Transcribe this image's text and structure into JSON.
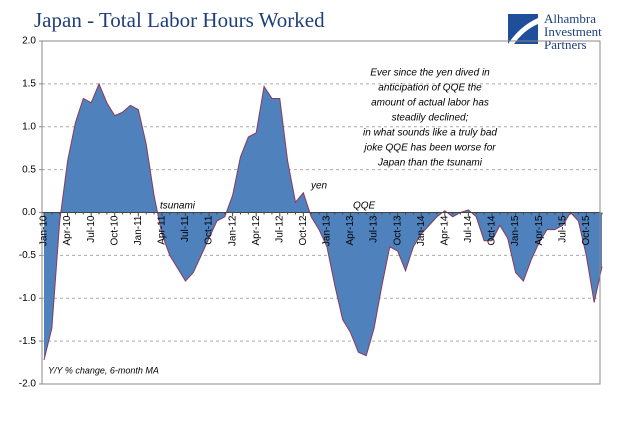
{
  "chart_data": {
    "type": "area",
    "title": "Japan - Total Labor Hours Worked",
    "logo": [
      "Alhambra",
      "Investment",
      "Partners"
    ],
    "axis_note": "Y/Y % change, 6-month MA",
    "note": [
      "Ever since the yen dived in",
      "anticipation of QQE the",
      "amount of actual labor has",
      "steadily declined;",
      "in what sounds like a truly bad",
      "joke QQE has been worse for",
      "Japan than the tsunami"
    ],
    "annotations": [
      "tsunami",
      "yen",
      "QQE"
    ],
    "categories": [
      "Jan-10",
      null,
      null,
      "Apr-10",
      null,
      null,
      "Jul-10",
      null,
      null,
      "Oct-10",
      null,
      null,
      "Jan-11",
      null,
      null,
      "Apr-11",
      null,
      null,
      "Jul-11",
      null,
      null,
      "Oct-11",
      null,
      null,
      "Jan-12",
      null,
      null,
      "Apr-12",
      null,
      null,
      "Jul-12",
      null,
      null,
      "Oct-12",
      null,
      null,
      "Jan-13",
      null,
      null,
      "Apr-13",
      null,
      null,
      "Jul-13",
      null,
      null,
      "Oct-13",
      null,
      null,
      "Jan-14",
      null,
      null,
      "Apr-14",
      null,
      null,
      "Jul-14",
      null,
      null,
      "Oct-14",
      null,
      null,
      "Jan-15",
      null,
      null,
      "Apr-15",
      null,
      null,
      "Jul-15",
      null,
      null,
      "Oct-15",
      null,
      null
    ],
    "values": [
      -1.72,
      -1.35,
      -0.1,
      0.6,
      1.05,
      1.33,
      1.28,
      1.5,
      1.28,
      1.13,
      1.17,
      1.25,
      1.2,
      0.8,
      0.2,
      -0.25,
      -0.5,
      -0.65,
      -0.8,
      -0.7,
      -0.5,
      -0.3,
      -0.1,
      -0.05,
      0.2,
      0.65,
      0.88,
      0.93,
      1.47,
      1.33,
      1.33,
      0.6,
      0.12,
      0.23,
      -0.05,
      -0.2,
      -0.4,
      -0.85,
      -1.25,
      -1.4,
      -1.63,
      -1.67,
      -1.35,
      -0.85,
      -0.4,
      -0.45,
      -0.68,
      -0.4,
      -0.25,
      -0.15,
      -0.05,
      0.02,
      -0.05,
      0.0,
      0.03,
      -0.05,
      -0.33,
      -0.33,
      -0.15,
      -0.3,
      -0.7,
      -0.8,
      -0.55,
      -0.35,
      -0.2,
      -0.2,
      -0.15,
      0.0,
      -0.1,
      -0.5,
      -1.05,
      -0.63
    ],
    "color": "#4f81bd",
    "line_color": "#8b3a5a",
    "ylim": [
      -2,
      2
    ],
    "yticks": [
      {
        "value": -2,
        "label": "-2.0"
      },
      {
        "value": -1.5,
        "label": "-1.5"
      },
      {
        "value": -1,
        "label": "-1.0"
      },
      {
        "value": -0.5,
        "label": "-0.5"
      },
      {
        "value": 0,
        "label": "0.0"
      },
      {
        "value": 0.5,
        "label": "0.5"
      },
      {
        "value": 1,
        "label": "1.0"
      },
      {
        "value": 1.5,
        "label": "1.5"
      },
      {
        "value": 2,
        "label": "2.0"
      }
    ],
    "grid": true
  }
}
